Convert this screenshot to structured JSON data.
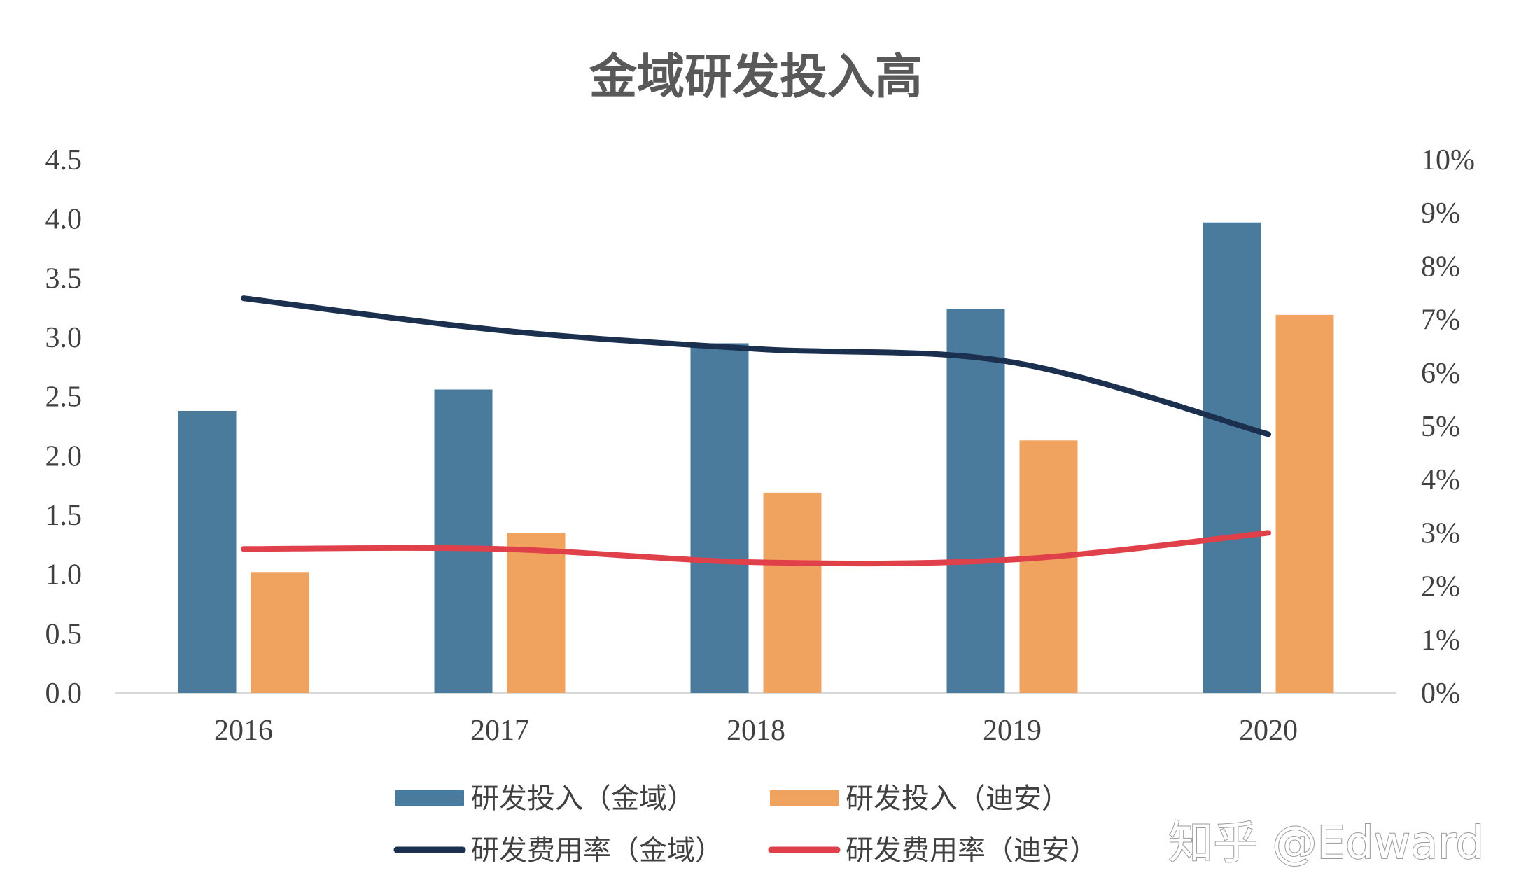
{
  "chart_data": {
    "type": "bar",
    "title": "金域研发投入高",
    "categories": [
      "2016",
      "2017",
      "2018",
      "2019",
      "2020"
    ],
    "series": [
      {
        "name": "研发投入（金域）",
        "kind": "bar",
        "axis": "left",
        "color": "#4A7A9C",
        "values": [
          2.38,
          2.56,
          2.95,
          3.24,
          3.97
        ]
      },
      {
        "name": "研发投入（迪安）",
        "kind": "bar",
        "axis": "left",
        "color": "#F0A35E",
        "values": [
          1.02,
          1.35,
          1.69,
          2.13,
          3.19
        ]
      },
      {
        "name": "研发费用率（金域）",
        "kind": "line",
        "axis": "right",
        "color": "#1B2F4E",
        "values": [
          7.4,
          6.8,
          6.45,
          6.2,
          4.85
        ]
      },
      {
        "name": "研发费用率（迪安）",
        "kind": "line",
        "axis": "right",
        "color": "#E0404A",
        "values": [
          2.7,
          2.7,
          2.45,
          2.5,
          3.0
        ]
      }
    ],
    "y_left": {
      "min": 0,
      "max": 4.5,
      "ticks": [
        "0.0",
        "0.5",
        "1.0",
        "1.5",
        "2.0",
        "2.5",
        "3.0",
        "3.5",
        "4.0",
        "4.5"
      ]
    },
    "y_right": {
      "min": 0,
      "max": 10,
      "ticks": [
        "0%",
        "1%",
        "2%",
        "3%",
        "4%",
        "5%",
        "6%",
        "7%",
        "8%",
        "9%",
        "10%"
      ]
    },
    "grid": false,
    "legend": "bottom"
  },
  "watermark": "知乎 @Edward"
}
